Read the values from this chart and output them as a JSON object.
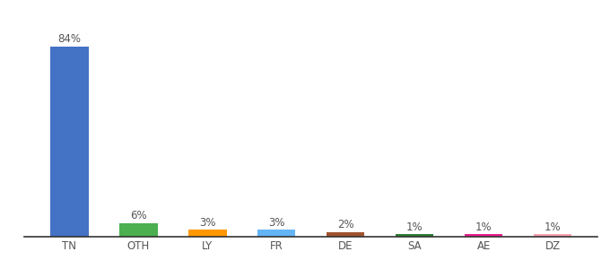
{
  "categories": [
    "TN",
    "OTH",
    "LY",
    "FR",
    "DE",
    "SA",
    "AE",
    "DZ"
  ],
  "values": [
    84,
    6,
    3,
    3,
    2,
    1,
    1,
    1
  ],
  "bar_colors": [
    "#4472c4",
    "#4caf50",
    "#ff9800",
    "#64b5f6",
    "#a0522d",
    "#2e7d32",
    "#e91e8c",
    "#f8a0b0"
  ],
  "labels": [
    "84%",
    "6%",
    "3%",
    "3%",
    "2%",
    "1%",
    "1%",
    "1%"
  ],
  "ylim": [
    0,
    95
  ],
  "background_color": "#ffffff",
  "label_fontsize": 8.5,
  "tick_fontsize": 8.5,
  "bar_width": 0.55
}
